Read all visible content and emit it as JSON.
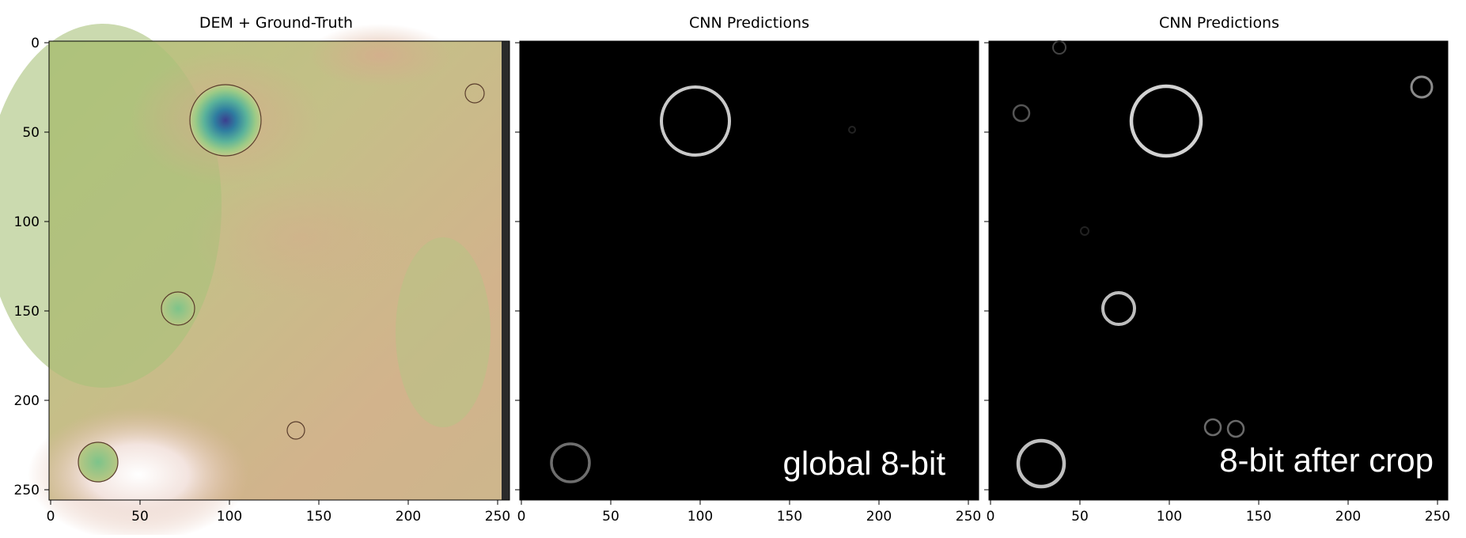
{
  "panels": [
    {
      "title": "DEM + Ground-Truth",
      "x_ticks": [
        "0",
        "50",
        "100",
        "150",
        "200",
        "250"
      ],
      "y_ticks": [
        "0",
        "50",
        "100",
        "150",
        "200",
        "250"
      ],
      "overlay_text": ""
    },
    {
      "title": "CNN Predictions",
      "x_ticks": [
        "0",
        "50",
        "100",
        "150",
        "200",
        "250"
      ],
      "overlay_text": "global 8-bit"
    },
    {
      "title": "CNN Predictions",
      "x_ticks": [
        "0",
        "50",
        "100",
        "150",
        "200",
        "250"
      ],
      "overlay_text": "8-bit after crop"
    }
  ],
  "colors": {
    "dem_base": "#c9b98a",
    "dem_green": "#a8c07a",
    "dem_crater_center": "#3b4a94",
    "prediction_background": "#000000",
    "prediction_ring": "#d8d8d8",
    "overlay_text": "#ffffff"
  }
}
